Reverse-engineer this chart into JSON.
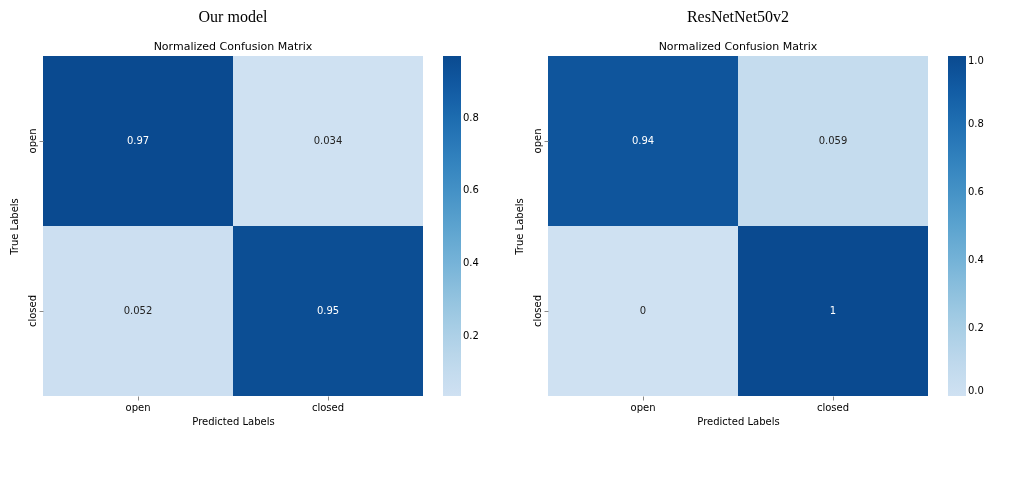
{
  "chart_data": [
    {
      "type": "heatmap",
      "title": "Our model",
      "subtitle": "Normalized Confusion Matrix",
      "xlabel": "Predicted Labels",
      "ylabel": "True Labels",
      "categories": [
        "open",
        "closed"
      ],
      "y_categories": [
        "open",
        "closed"
      ],
      "cells": [
        [
          0.97,
          0.034
        ],
        [
          0.052,
          0.95
        ]
      ],
      "data_labels": true,
      "clim": [
        0.034,
        0.97
      ],
      "cticks": [
        0.2,
        0.4,
        0.6,
        0.8
      ]
    },
    {
      "type": "heatmap",
      "title": "ResNetNet50v2",
      "subtitle": "Normalized Confusion Matrix",
      "xlabel": "Predicted Labels",
      "ylabel": "True Labels",
      "categories": [
        "open",
        "closed"
      ],
      "y_categories": [
        "open",
        "closed"
      ],
      "cells": [
        [
          0.94,
          0.059
        ],
        [
          0,
          1
        ]
      ],
      "data_labels": true,
      "clim": [
        0,
        1
      ],
      "cticks": [
        {
          "value": 0,
          "label": "0.0"
        },
        0.2,
        0.4,
        0.6,
        0.8,
        {
          "value": 1,
          "label": "1.0"
        }
      ]
    }
  ]
}
